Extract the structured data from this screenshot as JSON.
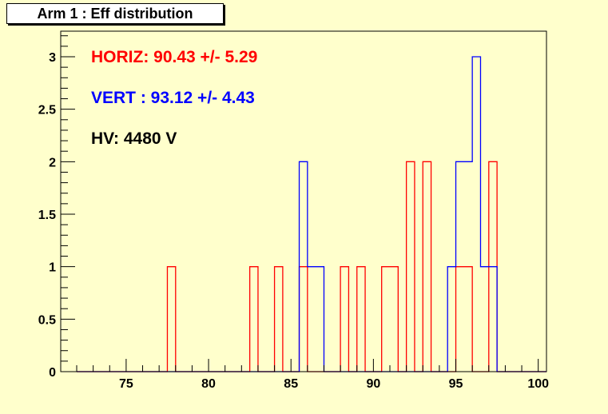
{
  "title": "Arm 1 : Eff distribution",
  "chart_data": {
    "type": "histogram",
    "xlim": [
      71,
      101
    ],
    "ylim": [
      0,
      3.2
    ],
    "bin_width": 0.5,
    "x_ticks": [
      75,
      80,
      85,
      90,
      95,
      100
    ],
    "y_ticks": [
      0,
      0.5,
      1,
      1.5,
      2,
      2.5,
      3
    ],
    "series": [
      {
        "color": "#ff0000",
        "bins": [
          {
            "x": 77.5,
            "count": 1
          },
          {
            "x": 82.5,
            "count": 1
          },
          {
            "x": 84.0,
            "count": 1
          },
          {
            "x": 85.5,
            "count": 1
          },
          {
            "x": 88.0,
            "count": 1
          },
          {
            "x": 89.0,
            "count": 1
          },
          {
            "x": 90.5,
            "count": 1
          },
          {
            "x": 91.0,
            "count": 1
          },
          {
            "x": 92.0,
            "count": 2
          },
          {
            "x": 93.0,
            "count": 2
          },
          {
            "x": 95.0,
            "count": 1
          },
          {
            "x": 95.5,
            "count": 1
          },
          {
            "x": 97.0,
            "count": 2
          }
        ]
      },
      {
        "color": "#0000ff",
        "bins": [
          {
            "x": 85.5,
            "count": 2
          },
          {
            "x": 86.0,
            "count": 1
          },
          {
            "x": 86.5,
            "count": 1
          },
          {
            "x": 94.5,
            "count": 1
          },
          {
            "x": 95.0,
            "count": 2
          },
          {
            "x": 95.5,
            "count": 2
          },
          {
            "x": 96.0,
            "count": 3
          },
          {
            "x": 96.5,
            "count": 1
          },
          {
            "x": 97.0,
            "count": 1
          }
        ]
      }
    ],
    "annotations": [
      {
        "text": "HORIZ: 90.43 +/- 5.29",
        "color": "#ff0000"
      },
      {
        "text": "VERT : 93.12 +/- 4.43",
        "color": "#0000ff"
      },
      {
        "text": "HV: 4480 V",
        "color": "#000000"
      }
    ]
  }
}
